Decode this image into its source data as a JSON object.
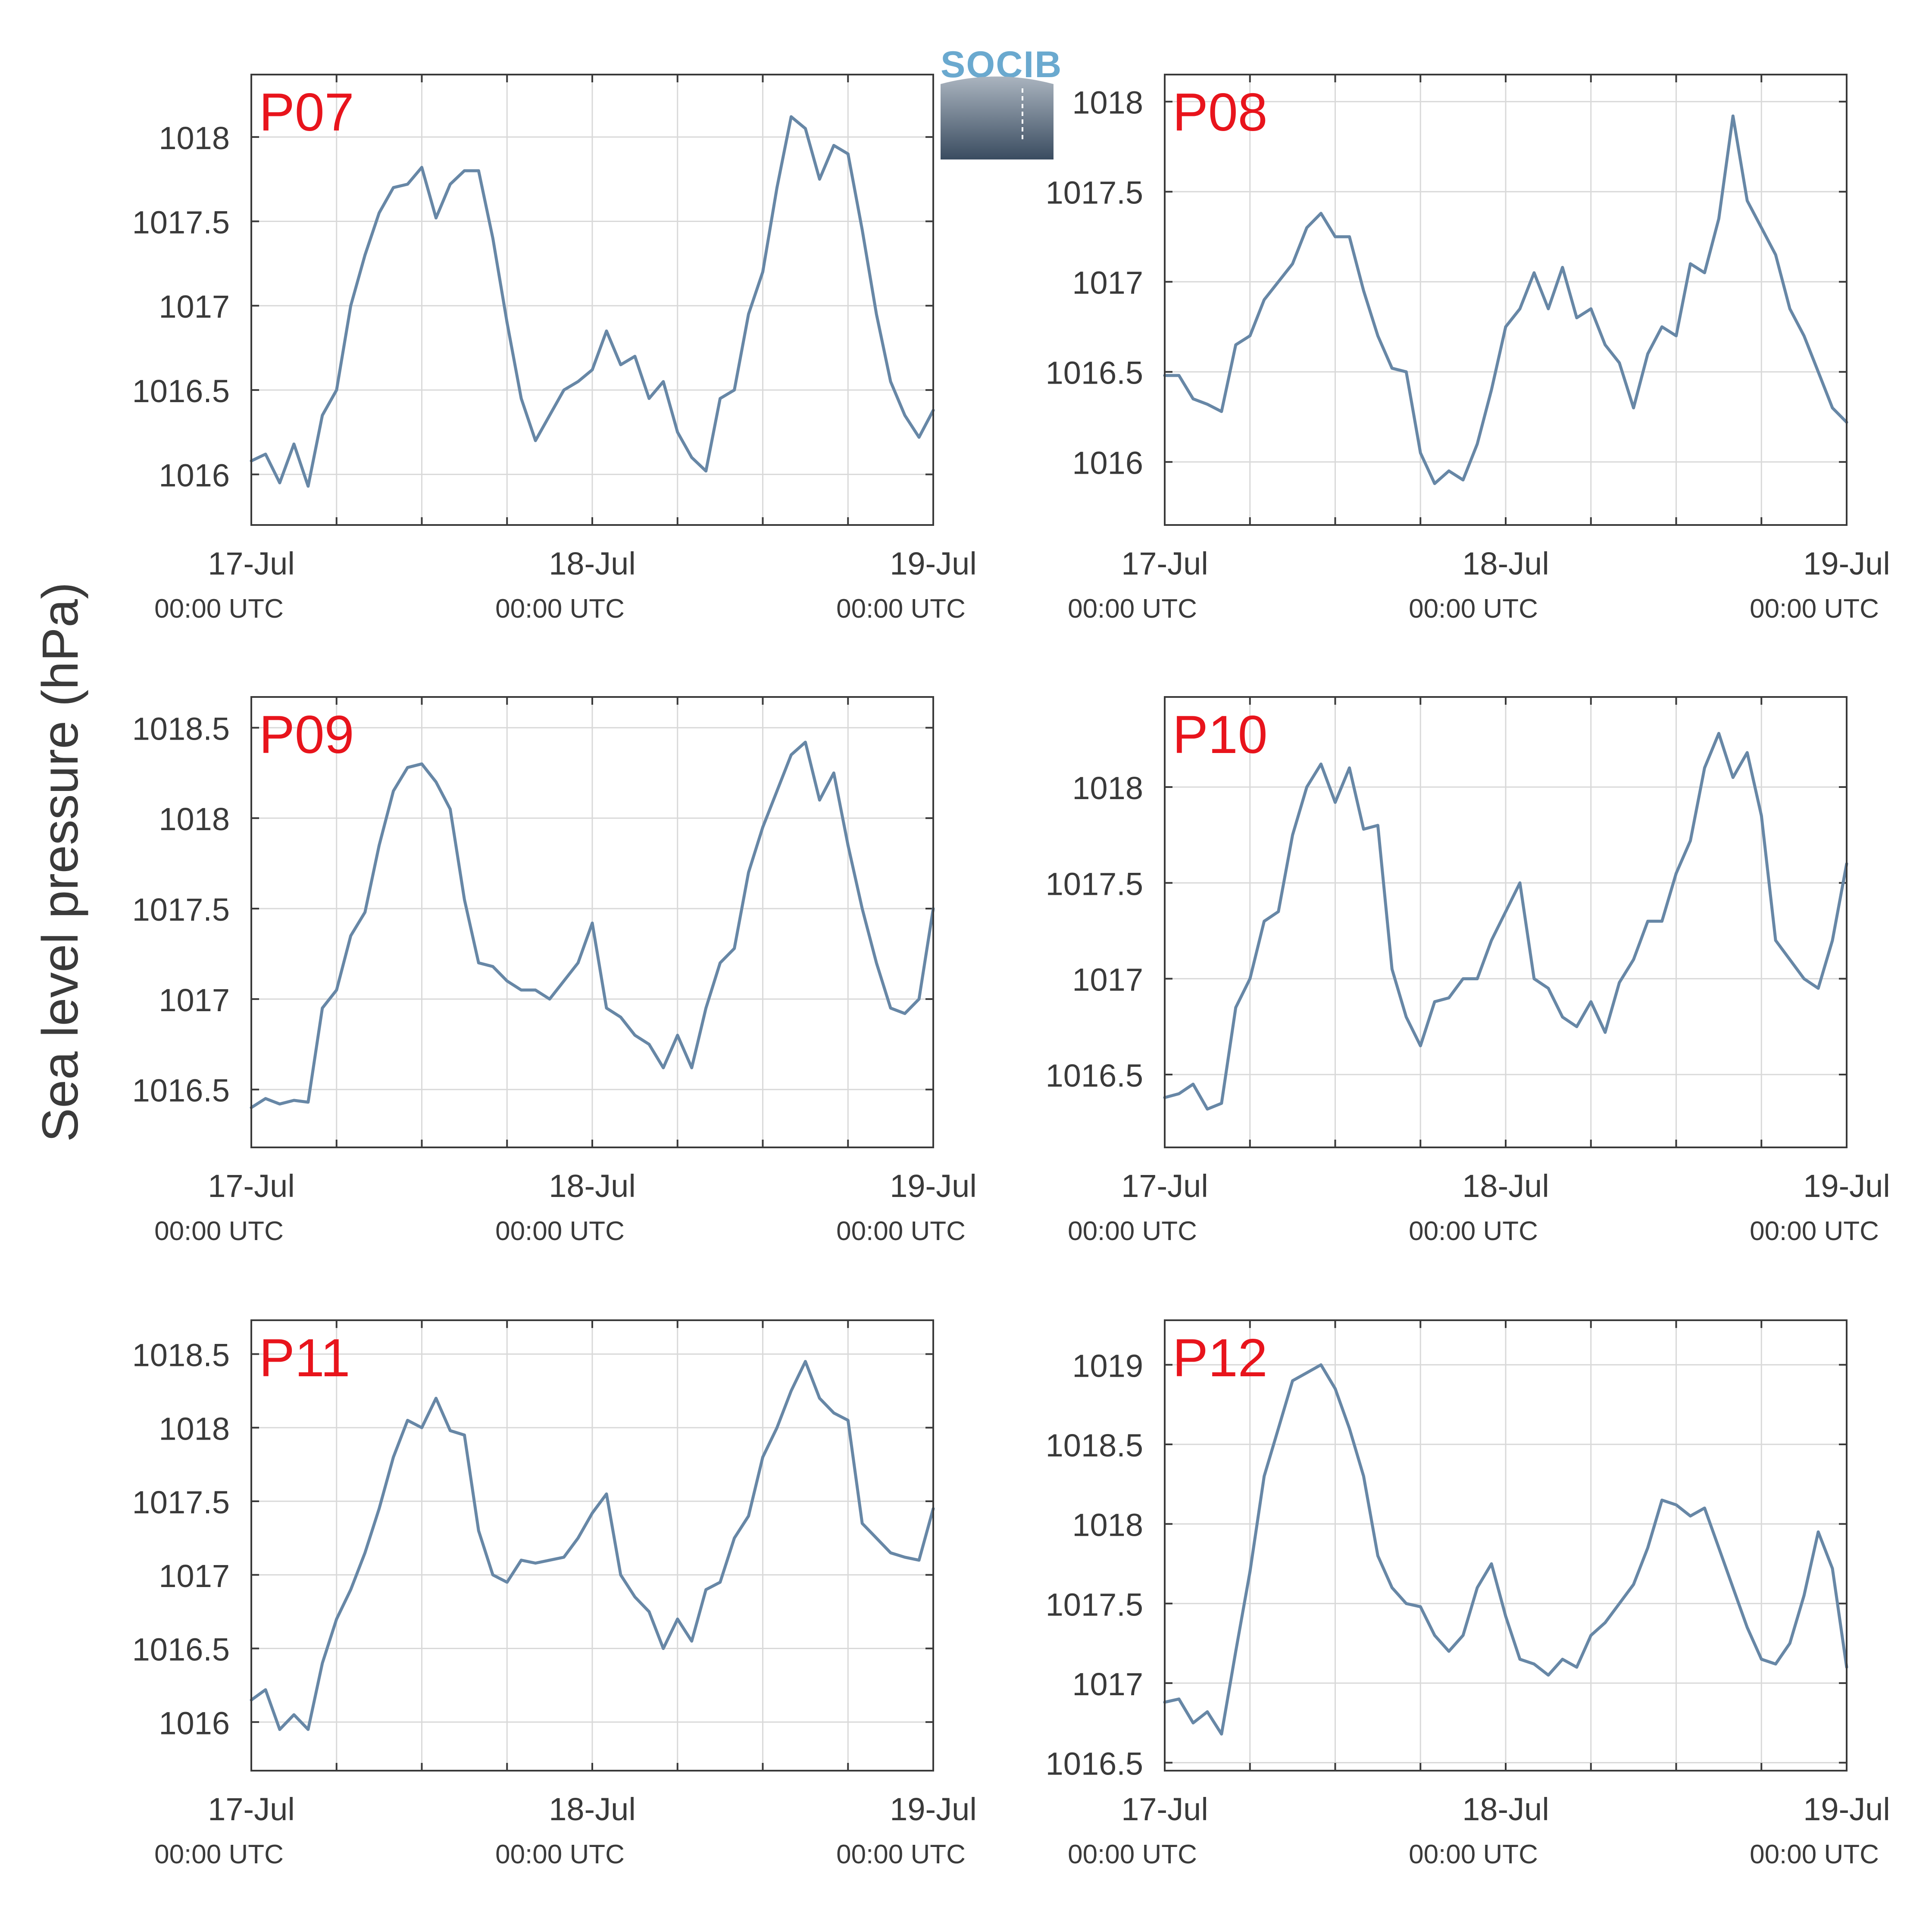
{
  "figure": {
    "ylabel": "Sea level pressure (hPa)",
    "logo_text": "SOCIB",
    "colors": {
      "line": "#6787a6",
      "panel_label": "#e8141c",
      "grid": "#d9d9d9",
      "axis": "#3a3a3a"
    }
  },
  "chart_data": [
    {
      "type": "line",
      "title": "P07",
      "xlabel": "",
      "ylabel": "Sea level pressure (hPa)",
      "xlim": [
        "17-Jul 00:00",
        "19-Jul 00:00"
      ],
      "ylim": [
        1015.7,
        1018.37
      ],
      "yticks": [
        1016,
        1016.5,
        1017,
        1017.5,
        1018
      ],
      "ytick_labels": [
        "1016",
        "1016.5",
        "1017",
        "1017.5",
        "1018"
      ],
      "xticks": [
        {
          "label": "17-Jul",
          "sublabel": "00:00 UTC"
        },
        {
          "label": "18-Jul",
          "sublabel": "00:00 UTC"
        },
        {
          "label": "19-Jul",
          "sublabel": "00:00 UTC"
        }
      ],
      "grid": true,
      "x_hours": [
        0,
        1,
        2,
        3,
        4,
        5,
        6,
        7,
        8,
        9,
        10,
        11,
        12,
        13,
        14,
        15,
        16,
        17,
        18,
        19,
        20,
        21,
        22,
        23,
        24,
        25,
        26,
        27,
        28,
        29,
        30,
        31,
        32,
        33,
        34,
        35,
        36,
        37,
        38,
        39,
        40,
        41,
        42,
        43,
        44,
        45,
        46,
        47,
        48
      ],
      "values": [
        1016.08,
        1016.12,
        1015.95,
        1016.18,
        1015.93,
        1016.35,
        1016.5,
        1017.0,
        1017.3,
        1017.55,
        1017.7,
        1017.72,
        1017.82,
        1017.52,
        1017.72,
        1017.8,
        1017.8,
        1017.4,
        1016.9,
        1016.45,
        1016.2,
        1016.35,
        1016.5,
        1016.55,
        1016.62,
        1016.85,
        1016.65,
        1016.7,
        1016.45,
        1016.55,
        1016.25,
        1016.1,
        1016.02,
        1016.45,
        1016.5,
        1016.95,
        1017.2,
        1017.7,
        1018.12,
        1018.05,
        1017.75,
        1017.95,
        1017.9,
        1017.45,
        1016.95,
        1016.55,
        1016.35,
        1016.22,
        1016.38
      ]
    },
    {
      "type": "line",
      "title": "P08",
      "xlabel": "",
      "ylabel": "Sea level pressure (hPa)",
      "xlim": [
        "17-Jul 00:00",
        "19-Jul 00:00"
      ],
      "ylim": [
        1015.65,
        1018.15
      ],
      "yticks": [
        1016,
        1016.5,
        1017,
        1017.5,
        1018
      ],
      "ytick_labels": [
        "1016",
        "1016.5",
        "1017",
        "1017.5",
        "1018"
      ],
      "xticks": [
        {
          "label": "17-Jul",
          "sublabel": "00:00 UTC"
        },
        {
          "label": "18-Jul",
          "sublabel": "00:00 UTC"
        },
        {
          "label": "19-Jul",
          "sublabel": "00:00 UTC"
        }
      ],
      "grid": true,
      "x_hours": [
        0,
        1,
        2,
        3,
        4,
        5,
        6,
        7,
        8,
        9,
        10,
        11,
        12,
        13,
        14,
        15,
        16,
        17,
        18,
        19,
        20,
        21,
        22,
        23,
        24,
        25,
        26,
        27,
        28,
        29,
        30,
        31,
        32,
        33,
        34,
        35,
        36,
        37,
        38,
        39,
        40,
        41,
        42,
        43,
        44,
        45,
        46,
        47,
        48
      ],
      "values": [
        1016.48,
        1016.48,
        1016.35,
        1016.32,
        1016.28,
        1016.65,
        1016.7,
        1016.9,
        1017.0,
        1017.1,
        1017.3,
        1017.38,
        1017.25,
        1017.25,
        1016.95,
        1016.7,
        1016.52,
        1016.5,
        1016.05,
        1015.88,
        1015.95,
        1015.9,
        1016.1,
        1016.4,
        1016.75,
        1016.85,
        1017.05,
        1016.85,
        1017.08,
        1016.8,
        1016.85,
        1016.65,
        1016.55,
        1016.3,
        1016.6,
        1016.75,
        1016.7,
        1017.1,
        1017.05,
        1017.35,
        1017.92,
        1017.45,
        1017.3,
        1017.15,
        1016.85,
        1016.7,
        1016.5,
        1016.3,
        1016.22
      ]
    },
    {
      "type": "line",
      "title": "P09",
      "xlabel": "",
      "ylabel": "Sea level pressure (hPa)",
      "xlim": [
        "17-Jul 00:00",
        "19-Jul 00:00"
      ],
      "ylim": [
        1016.18,
        1018.67
      ],
      "yticks": [
        1016.5,
        1017,
        1017.5,
        1018,
        1018.5
      ],
      "ytick_labels": [
        "1016.5",
        "1017",
        "1017.5",
        "1018",
        "1018.5"
      ],
      "xticks": [
        {
          "label": "17-Jul",
          "sublabel": "00:00 UTC"
        },
        {
          "label": "18-Jul",
          "sublabel": "00:00 UTC"
        },
        {
          "label": "19-Jul",
          "sublabel": "00:00 UTC"
        }
      ],
      "grid": true,
      "x_hours": [
        0,
        1,
        2,
        3,
        4,
        5,
        6,
        7,
        8,
        9,
        10,
        11,
        12,
        13,
        14,
        15,
        16,
        17,
        18,
        19,
        20,
        21,
        22,
        23,
        24,
        25,
        26,
        27,
        28,
        29,
        30,
        31,
        32,
        33,
        34,
        35,
        36,
        37,
        38,
        39,
        40,
        41,
        42,
        43,
        44,
        45,
        46,
        47,
        48
      ],
      "values": [
        1016.4,
        1016.45,
        1016.42,
        1016.44,
        1016.43,
        1016.95,
        1017.05,
        1017.35,
        1017.48,
        1017.85,
        1018.15,
        1018.28,
        1018.3,
        1018.2,
        1018.05,
        1017.55,
        1017.2,
        1017.18,
        1017.1,
        1017.05,
        1017.05,
        1017.0,
        1017.1,
        1017.2,
        1017.42,
        1016.95,
        1016.9,
        1016.8,
        1016.75,
        1016.62,
        1016.8,
        1016.62,
        1016.95,
        1017.2,
        1017.28,
        1017.7,
        1017.95,
        1018.15,
        1018.35,
        1018.42,
        1018.1,
        1018.25,
        1017.85,
        1017.5,
        1017.2,
        1016.95,
        1016.92,
        1017.0,
        1017.5
      ]
    },
    {
      "type": "line",
      "title": "P10",
      "xlabel": "",
      "ylabel": "Sea level pressure (hPa)",
      "xlim": [
        "17-Jul 00:00",
        "19-Jul 00:00"
      ],
      "ylim": [
        1016.12,
        1018.47
      ],
      "yticks": [
        1016.5,
        1017,
        1017.5,
        1018
      ],
      "ytick_labels": [
        "1016.5",
        "1017",
        "1017.5",
        "1018"
      ],
      "xticks": [
        {
          "label": "17-Jul",
          "sublabel": "00:00 UTC"
        },
        {
          "label": "18-Jul",
          "sublabel": "00:00 UTC"
        },
        {
          "label": "19-Jul",
          "sublabel": "00:00 UTC"
        }
      ],
      "grid": true,
      "x_hours": [
        0,
        1,
        2,
        3,
        4,
        5,
        6,
        7,
        8,
        9,
        10,
        11,
        12,
        13,
        14,
        15,
        16,
        17,
        18,
        19,
        20,
        21,
        22,
        23,
        24,
        25,
        26,
        27,
        28,
        29,
        30,
        31,
        32,
        33,
        34,
        35,
        36,
        37,
        38,
        39,
        40,
        41,
        42,
        43,
        44,
        45,
        46,
        47,
        48
      ],
      "values": [
        1016.38,
        1016.4,
        1016.45,
        1016.32,
        1016.35,
        1016.85,
        1017.0,
        1017.3,
        1017.35,
        1017.75,
        1018.0,
        1018.12,
        1017.92,
        1018.1,
        1017.78,
        1017.8,
        1017.05,
        1016.8,
        1016.65,
        1016.88,
        1016.9,
        1017.0,
        1017.0,
        1017.2,
        1017.35,
        1017.5,
        1017.0,
        1016.95,
        1016.8,
        1016.75,
        1016.88,
        1016.72,
        1016.98,
        1017.1,
        1017.3,
        1017.3,
        1017.55,
        1017.72,
        1018.1,
        1018.28,
        1018.05,
        1018.18,
        1017.85,
        1017.2,
        1017.1,
        1017.0,
        1016.95,
        1017.2,
        1017.6
      ]
    },
    {
      "type": "line",
      "title": "P11",
      "xlabel": "",
      "ylabel": "Sea level pressure (hPa)",
      "xlim": [
        "17-Jul 00:00",
        "19-Jul 00:00"
      ],
      "ylim": [
        1015.67,
        1018.73
      ],
      "yticks": [
        1016,
        1016.5,
        1017,
        1017.5,
        1018,
        1018.5
      ],
      "ytick_labels": [
        "1016",
        "1016.5",
        "1017",
        "1017.5",
        "1018",
        "1018.5"
      ],
      "xticks": [
        {
          "label": "17-Jul",
          "sublabel": "00:00 UTC"
        },
        {
          "label": "18-Jul",
          "sublabel": "00:00 UTC"
        },
        {
          "label": "19-Jul",
          "sublabel": "00:00 UTC"
        }
      ],
      "grid": true,
      "x_hours": [
        0,
        1,
        2,
        3,
        4,
        5,
        6,
        7,
        8,
        9,
        10,
        11,
        12,
        13,
        14,
        15,
        16,
        17,
        18,
        19,
        20,
        21,
        22,
        23,
        24,
        25,
        26,
        27,
        28,
        29,
        30,
        31,
        32,
        33,
        34,
        35,
        36,
        37,
        38,
        39,
        40,
        41,
        42,
        43,
        44,
        45,
        46,
        47,
        48
      ],
      "values": [
        1016.15,
        1016.22,
        1015.95,
        1016.05,
        1015.95,
        1016.4,
        1016.7,
        1016.9,
        1017.15,
        1017.45,
        1017.8,
        1018.05,
        1018.0,
        1018.2,
        1017.98,
        1017.95,
        1017.3,
        1017.0,
        1016.95,
        1017.1,
        1017.08,
        1017.1,
        1017.12,
        1017.25,
        1017.42,
        1017.55,
        1017.0,
        1016.85,
        1016.75,
        1016.5,
        1016.7,
        1016.55,
        1016.9,
        1016.95,
        1017.25,
        1017.4,
        1017.8,
        1018.0,
        1018.25,
        1018.45,
        1018.2,
        1018.1,
        1018.05,
        1017.35,
        1017.25,
        1017.15,
        1017.12,
        1017.1,
        1017.45
      ]
    },
    {
      "type": "line",
      "title": "P12",
      "xlabel": "",
      "ylabel": "Sea level pressure (hPa)",
      "xlim": [
        "17-Jul 00:00",
        "19-Jul 00:00"
      ],
      "ylim": [
        1016.45,
        1019.28
      ],
      "yticks": [
        1016.5,
        1017,
        1017.5,
        1018,
        1018.5,
        1019
      ],
      "ytick_labels": [
        "1016.5",
        "1017",
        "1017.5",
        "1018",
        "1018.5",
        "1019"
      ],
      "xticks": [
        {
          "label": "17-Jul",
          "sublabel": "00:00 UTC"
        },
        {
          "label": "18-Jul",
          "sublabel": "00:00 UTC"
        },
        {
          "label": "19-Jul",
          "sublabel": "00:00 UTC"
        }
      ],
      "grid": true,
      "x_hours": [
        0,
        1,
        2,
        3,
        4,
        5,
        6,
        7,
        8,
        9,
        10,
        11,
        12,
        13,
        14,
        15,
        16,
        17,
        18,
        19,
        20,
        21,
        22,
        23,
        24,
        25,
        26,
        27,
        28,
        29,
        30,
        31,
        32,
        33,
        34,
        35,
        36,
        37,
        38,
        39,
        40,
        41,
        42,
        43,
        44,
        45,
        46,
        47,
        48
      ],
      "values": [
        1016.88,
        1016.9,
        1016.75,
        1016.82,
        1016.68,
        1017.2,
        1017.7,
        1018.3,
        1018.6,
        1018.9,
        1018.95,
        1019.0,
        1018.85,
        1018.6,
        1018.3,
        1017.8,
        1017.6,
        1017.5,
        1017.48,
        1017.3,
        1017.2,
        1017.3,
        1017.6,
        1017.75,
        1017.42,
        1017.15,
        1017.12,
        1017.05,
        1017.15,
        1017.1,
        1017.3,
        1017.38,
        1017.5,
        1017.62,
        1017.85,
        1018.15,
        1018.12,
        1018.05,
        1018.1,
        1017.85,
        1017.6,
        1017.35,
        1017.15,
        1017.12,
        1017.25,
        1017.55,
        1017.95,
        1017.72,
        1017.1
      ]
    }
  ]
}
